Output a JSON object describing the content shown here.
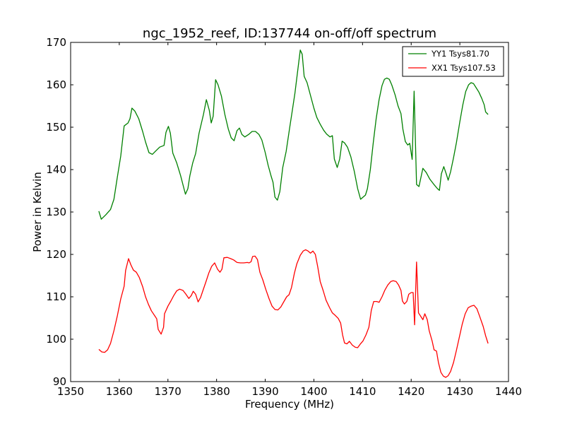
{
  "chart_data": {
    "type": "line",
    "title": "ngc_1952_reef, ID:137744 on-off/off spectrum",
    "xlabel": "Frequency (MHz)",
    "ylabel": "Power in Kelvin",
    "xlim": [
      1350,
      1440
    ],
    "ylim": [
      90,
      170
    ],
    "xticks": [
      1350,
      1360,
      1370,
      1380,
      1390,
      1400,
      1410,
      1420,
      1430,
      1440
    ],
    "yticks": [
      90,
      100,
      110,
      120,
      130,
      140,
      150,
      160,
      170
    ],
    "grid": false,
    "legend_position": "top-right",
    "series": [
      {
        "name": "YY1 Tsys81.70",
        "color": "#008000",
        "points": [
          [
            1355.8,
            130.2
          ],
          [
            1356.3,
            128.3
          ],
          [
            1357.2,
            129.3
          ],
          [
            1358.2,
            130.6
          ],
          [
            1358.9,
            133.0
          ],
          [
            1359.6,
            138.2
          ],
          [
            1360.3,
            143.2
          ],
          [
            1361.0,
            150.3
          ],
          [
            1361.8,
            151.0
          ],
          [
            1362.2,
            152.0
          ],
          [
            1362.6,
            154.5
          ],
          [
            1363.2,
            153.8
          ],
          [
            1364.0,
            152.0
          ],
          [
            1364.8,
            149.0
          ],
          [
            1365.4,
            146.5
          ],
          [
            1366.1,
            144.0
          ],
          [
            1366.8,
            143.6
          ],
          [
            1367.5,
            144.4
          ],
          [
            1368.3,
            145.3
          ],
          [
            1369.2,
            145.7
          ],
          [
            1369.6,
            148.8
          ],
          [
            1370.1,
            150.2
          ],
          [
            1370.5,
            148.6
          ],
          [
            1371.0,
            143.9
          ],
          [
            1371.8,
            141.6
          ],
          [
            1372.6,
            138.6
          ],
          [
            1373.3,
            135.5
          ],
          [
            1373.6,
            134.2
          ],
          [
            1374.1,
            135.5
          ],
          [
            1374.5,
            138.5
          ],
          [
            1375.1,
            141.6
          ],
          [
            1375.7,
            143.8
          ],
          [
            1376.4,
            148.6
          ],
          [
            1377.3,
            153.0
          ],
          [
            1377.9,
            156.5
          ],
          [
            1378.5,
            154.0
          ],
          [
            1378.9,
            151.0
          ],
          [
            1379.3,
            152.6
          ],
          [
            1379.8,
            161.2
          ],
          [
            1380.3,
            160.0
          ],
          [
            1381.0,
            157.3
          ],
          [
            1381.7,
            153.0
          ],
          [
            1382.4,
            149.6
          ],
          [
            1383.0,
            147.5
          ],
          [
            1383.6,
            146.8
          ],
          [
            1384.2,
            149.2
          ],
          [
            1384.7,
            149.8
          ],
          [
            1385.2,
            148.3
          ],
          [
            1385.8,
            147.7
          ],
          [
            1386.6,
            148.3
          ],
          [
            1387.3,
            149.0
          ],
          [
            1388.0,
            149.0
          ],
          [
            1388.7,
            148.3
          ],
          [
            1389.3,
            147.0
          ],
          [
            1390.0,
            144.0
          ],
          [
            1390.6,
            141.0
          ],
          [
            1391.2,
            138.5
          ],
          [
            1391.6,
            137.0
          ],
          [
            1392.0,
            133.5
          ],
          [
            1392.5,
            132.8
          ],
          [
            1393.0,
            134.8
          ],
          [
            1393.6,
            140.5
          ],
          [
            1394.3,
            144.3
          ],
          [
            1395.0,
            149.7
          ],
          [
            1395.6,
            154.2
          ],
          [
            1396.1,
            158.0
          ],
          [
            1396.8,
            164.5
          ],
          [
            1397.2,
            168.2
          ],
          [
            1397.6,
            167.2
          ],
          [
            1398.0,
            162.0
          ],
          [
            1398.6,
            160.5
          ],
          [
            1399.3,
            157.5
          ],
          [
            1400.0,
            154.5
          ],
          [
            1400.6,
            152.3
          ],
          [
            1401.3,
            150.7
          ],
          [
            1402.0,
            149.3
          ],
          [
            1402.6,
            148.4
          ],
          [
            1403.3,
            147.7
          ],
          [
            1403.8,
            148.0
          ],
          [
            1404.2,
            142.5
          ],
          [
            1404.8,
            140.5
          ],
          [
            1405.3,
            142.5
          ],
          [
            1405.8,
            146.7
          ],
          [
            1406.3,
            146.3
          ],
          [
            1406.9,
            145.3
          ],
          [
            1407.6,
            143.0
          ],
          [
            1408.3,
            139.6
          ],
          [
            1409.0,
            135.5
          ],
          [
            1409.6,
            133.0
          ],
          [
            1410.1,
            133.5
          ],
          [
            1410.6,
            134.0
          ],
          [
            1411.0,
            135.5
          ],
          [
            1411.6,
            140.0
          ],
          [
            1412.2,
            146.3
          ],
          [
            1412.8,
            152.0
          ],
          [
            1413.4,
            156.5
          ],
          [
            1414.0,
            159.8
          ],
          [
            1414.5,
            161.3
          ],
          [
            1415.0,
            161.6
          ],
          [
            1415.5,
            161.3
          ],
          [
            1416.0,
            160.0
          ],
          [
            1416.7,
            157.6
          ],
          [
            1417.3,
            155.0
          ],
          [
            1417.9,
            153.2
          ],
          [
            1418.3,
            149.5
          ],
          [
            1418.8,
            146.6
          ],
          [
            1419.3,
            145.8
          ],
          [
            1419.7,
            146.2
          ],
          [
            1420.2,
            142.4
          ],
          [
            1420.6,
            158.5
          ],
          [
            1421.1,
            136.5
          ],
          [
            1421.6,
            136.0
          ],
          [
            1422.4,
            140.3
          ],
          [
            1423.1,
            139.3
          ],
          [
            1423.8,
            137.8
          ],
          [
            1424.6,
            136.6
          ],
          [
            1425.4,
            135.5
          ],
          [
            1425.8,
            135.1
          ],
          [
            1426.2,
            139.0
          ],
          [
            1426.7,
            140.7
          ],
          [
            1427.2,
            139.0
          ],
          [
            1427.6,
            137.5
          ],
          [
            1428.1,
            139.5
          ],
          [
            1428.7,
            142.8
          ],
          [
            1429.3,
            146.4
          ],
          [
            1430.0,
            151.3
          ],
          [
            1430.6,
            155.2
          ],
          [
            1431.2,
            158.4
          ],
          [
            1431.8,
            160.0
          ],
          [
            1432.3,
            160.5
          ],
          [
            1432.8,
            160.3
          ],
          [
            1433.3,
            159.4
          ],
          [
            1433.9,
            158.3
          ],
          [
            1434.5,
            156.8
          ],
          [
            1435.0,
            155.3
          ],
          [
            1435.3,
            153.6
          ],
          [
            1435.8,
            153.0
          ]
        ]
      },
      {
        "name": "XX1 Tsys107.53",
        "color": "#ff0000",
        "points": [
          [
            1355.8,
            97.6
          ],
          [
            1356.4,
            97.0
          ],
          [
            1357.0,
            96.9
          ],
          [
            1357.6,
            97.5
          ],
          [
            1358.2,
            99.0
          ],
          [
            1358.9,
            102.0
          ],
          [
            1359.6,
            105.5
          ],
          [
            1360.3,
            109.5
          ],
          [
            1361.0,
            112.5
          ],
          [
            1361.3,
            116.2
          ],
          [
            1361.9,
            119.0
          ],
          [
            1362.4,
            117.5
          ],
          [
            1362.9,
            116.3
          ],
          [
            1363.5,
            115.8
          ],
          [
            1364.1,
            114.6
          ],
          [
            1364.8,
            112.4
          ],
          [
            1365.4,
            110.0
          ],
          [
            1366.0,
            108.2
          ],
          [
            1366.6,
            106.7
          ],
          [
            1367.3,
            105.5
          ],
          [
            1367.7,
            104.8
          ],
          [
            1368.0,
            102.3
          ],
          [
            1368.6,
            101.2
          ],
          [
            1369.1,
            102.8
          ],
          [
            1369.3,
            106.0
          ],
          [
            1370.0,
            107.8
          ],
          [
            1370.6,
            109.0
          ],
          [
            1371.2,
            110.3
          ],
          [
            1371.8,
            111.4
          ],
          [
            1372.4,
            111.8
          ],
          [
            1373.1,
            111.5
          ],
          [
            1373.7,
            110.6
          ],
          [
            1374.3,
            109.6
          ],
          [
            1374.8,
            110.3
          ],
          [
            1375.2,
            111.3
          ],
          [
            1375.7,
            110.6
          ],
          [
            1376.2,
            108.8
          ],
          [
            1376.7,
            109.8
          ],
          [
            1377.2,
            111.5
          ],
          [
            1377.8,
            113.5
          ],
          [
            1378.4,
            115.6
          ],
          [
            1379.0,
            117.2
          ],
          [
            1379.6,
            118.0
          ],
          [
            1380.2,
            116.5
          ],
          [
            1380.7,
            115.8
          ],
          [
            1381.1,
            116.5
          ],
          [
            1381.5,
            119.2
          ],
          [
            1382.2,
            119.3
          ],
          [
            1382.9,
            119.0
          ],
          [
            1383.5,
            118.7
          ],
          [
            1384.2,
            118.1
          ],
          [
            1384.9,
            118.0
          ],
          [
            1385.6,
            118.0
          ],
          [
            1386.3,
            118.1
          ],
          [
            1386.7,
            118.0
          ],
          [
            1387.1,
            118.3
          ],
          [
            1387.4,
            119.5
          ],
          [
            1387.9,
            119.6
          ],
          [
            1388.4,
            118.8
          ],
          [
            1388.9,
            115.8
          ],
          [
            1389.5,
            114.0
          ],
          [
            1390.1,
            111.8
          ],
          [
            1390.8,
            109.5
          ],
          [
            1391.4,
            107.8
          ],
          [
            1392.0,
            107.0
          ],
          [
            1392.6,
            106.9
          ],
          [
            1393.2,
            107.6
          ],
          [
            1393.9,
            109.0
          ],
          [
            1394.4,
            110.0
          ],
          [
            1394.9,
            110.5
          ],
          [
            1395.4,
            112.2
          ],
          [
            1396.0,
            115.6
          ],
          [
            1396.5,
            117.8
          ],
          [
            1397.2,
            119.8
          ],
          [
            1397.8,
            120.8
          ],
          [
            1398.3,
            121.1
          ],
          [
            1398.8,
            120.8
          ],
          [
            1399.3,
            120.3
          ],
          [
            1399.8,
            120.8
          ],
          [
            1400.3,
            120.0
          ],
          [
            1400.8,
            117.0
          ],
          [
            1401.3,
            113.6
          ],
          [
            1401.9,
            111.5
          ],
          [
            1402.5,
            109.2
          ],
          [
            1403.2,
            107.5
          ],
          [
            1403.8,
            106.2
          ],
          [
            1404.4,
            105.6
          ],
          [
            1405.0,
            104.9
          ],
          [
            1405.5,
            103.8
          ],
          [
            1405.9,
            101.0
          ],
          [
            1406.3,
            99.1
          ],
          [
            1406.8,
            98.9
          ],
          [
            1407.3,
            99.5
          ],
          [
            1407.9,
            98.6
          ],
          [
            1408.5,
            98.1
          ],
          [
            1409.0,
            98.0
          ],
          [
            1409.5,
            98.8
          ],
          [
            1410.1,
            99.6
          ],
          [
            1410.7,
            101.0
          ],
          [
            1411.3,
            102.8
          ],
          [
            1411.8,
            106.8
          ],
          [
            1412.3,
            108.9
          ],
          [
            1412.9,
            108.9
          ],
          [
            1413.4,
            108.7
          ],
          [
            1414.0,
            110.0
          ],
          [
            1414.6,
            111.6
          ],
          [
            1415.2,
            112.8
          ],
          [
            1415.8,
            113.6
          ],
          [
            1416.3,
            113.8
          ],
          [
            1416.9,
            113.6
          ],
          [
            1417.4,
            112.8
          ],
          [
            1417.9,
            111.5
          ],
          [
            1418.2,
            109.0
          ],
          [
            1418.6,
            108.3
          ],
          [
            1419.1,
            108.9
          ],
          [
            1419.5,
            110.6
          ],
          [
            1420.0,
            111.0
          ],
          [
            1420.4,
            111.0
          ],
          [
            1420.7,
            103.4
          ],
          [
            1421.1,
            118.2
          ],
          [
            1421.5,
            106.2
          ],
          [
            1421.9,
            105.5
          ],
          [
            1422.4,
            104.6
          ],
          [
            1422.8,
            106.0
          ],
          [
            1423.3,
            104.6
          ],
          [
            1423.7,
            102.0
          ],
          [
            1424.3,
            99.6
          ],
          [
            1424.7,
            97.5
          ],
          [
            1425.2,
            97.2
          ],
          [
            1425.6,
            94.5
          ],
          [
            1426.1,
            92.2
          ],
          [
            1426.6,
            91.3
          ],
          [
            1427.1,
            91.0
          ],
          [
            1427.6,
            91.4
          ],
          [
            1428.1,
            92.4
          ],
          [
            1428.7,
            94.5
          ],
          [
            1429.3,
            97.4
          ],
          [
            1429.9,
            100.5
          ],
          [
            1430.5,
            103.6
          ],
          [
            1431.1,
            106.0
          ],
          [
            1431.7,
            107.4
          ],
          [
            1432.3,
            107.8
          ],
          [
            1432.9,
            108.0
          ],
          [
            1433.5,
            107.2
          ],
          [
            1434.1,
            105.3
          ],
          [
            1434.8,
            103.0
          ],
          [
            1435.3,
            100.8
          ],
          [
            1435.8,
            99.0
          ]
        ]
      }
    ]
  }
}
